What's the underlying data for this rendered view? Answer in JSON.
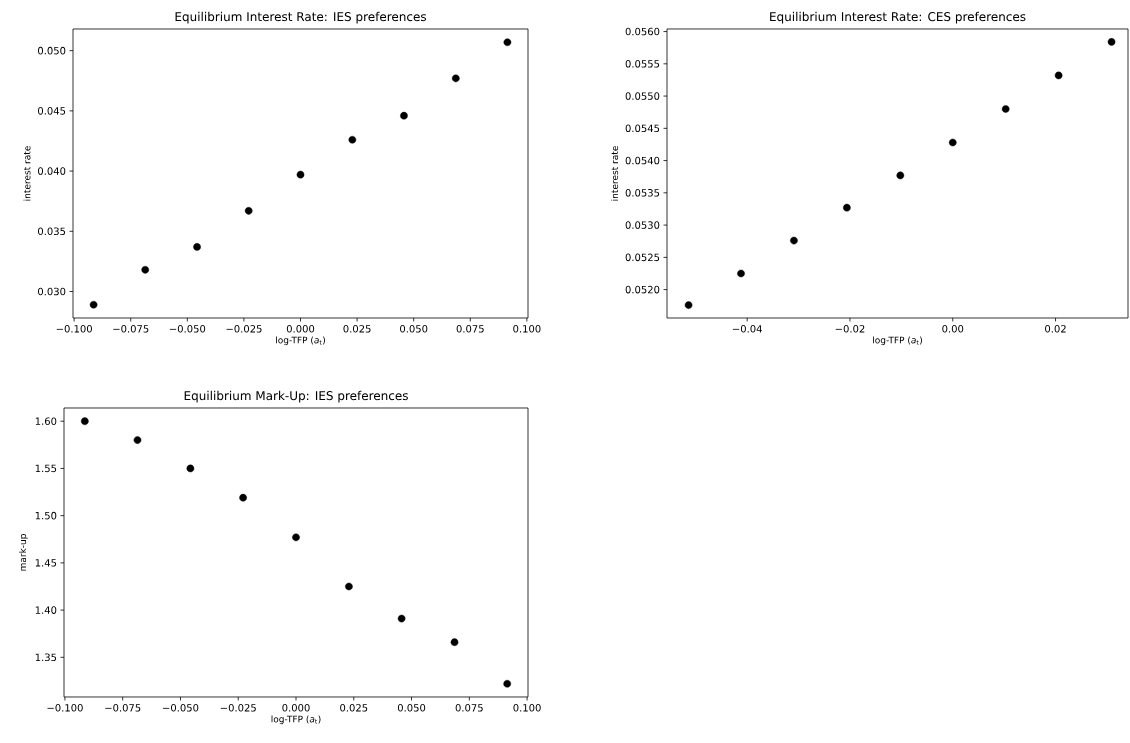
{
  "chart_data": [
    {
      "type": "scatter",
      "title": "Equilibrium Interest Rate: IES preferences",
      "xlabel": "log-TFP (*a*$_{t}$)",
      "ylabel": "interest rate",
      "marker": "circle",
      "x": [
        -0.0914,
        -0.0686,
        -0.0457,
        -0.0229,
        0.0,
        0.0229,
        0.0457,
        0.0686,
        0.0914
      ],
      "series": [
        {
          "color": "#000000",
          "values": [
            0.0289,
            0.0318,
            0.0337,
            0.0367,
            0.0397,
            0.0426,
            0.0446,
            0.0477,
            0.0507
          ]
        }
      ],
      "xlim": [
        -0.1005,
        0.1005
      ],
      "ylim": [
        0.0278,
        0.0518
      ],
      "xticks": [
        {
          "value": -0.1,
          "label": "−0.100"
        },
        {
          "value": -0.075,
          "label": "−0.075"
        },
        {
          "value": -0.05,
          "label": "−0.050"
        },
        {
          "value": -0.025,
          "label": "−0.025"
        },
        {
          "value": 0,
          "label": "0.000"
        },
        {
          "value": 0.025,
          "label": "0.025"
        },
        {
          "value": 0.05,
          "label": "0.050"
        },
        {
          "value": 0.075,
          "label": "0.075"
        },
        {
          "value": 0.1,
          "label": "0.100"
        }
      ],
      "yticks": [
        {
          "value": 0.03,
          "label": "0.030"
        },
        {
          "value": 0.035,
          "label": "0.035"
        },
        {
          "value": 0.04,
          "label": "0.040"
        },
        {
          "value": 0.045,
          "label": "0.045"
        },
        {
          "value": 0.05,
          "label": "0.050"
        }
      ]
    },
    {
      "type": "scatter",
      "title": "Equilibrium Interest Rate: CES preferences",
      "xlabel": "log-TFP (*a*$_{t}$)",
      "ylabel": "interest rate",
      "marker": "circle",
      "x": [
        -0.0514,
        -0.0412,
        -0.0309,
        -0.0206,
        -0.0102,
        0.0,
        0.0103,
        0.0206,
        0.0309
      ],
      "series": [
        {
          "color": "#000000",
          "values": [
            0.05176,
            0.05225,
            0.05276,
            0.05327,
            0.05377,
            0.05428,
            0.0548,
            0.05532,
            0.05584
          ]
        }
      ],
      "xlim": [
        -0.0556,
        0.0341
      ],
      "ylim": [
        0.05156,
        0.05604
      ],
      "xticks": [
        {
          "value": -0.04,
          "label": "−0.04"
        },
        {
          "value": -0.02,
          "label": "−0.02"
        },
        {
          "value": 0,
          "label": "0.00"
        },
        {
          "value": 0.02,
          "label": "0.02"
        }
      ],
      "yticks": [
        {
          "value": 0.052,
          "label": "0.0520"
        },
        {
          "value": 0.0525,
          "label": "0.0525"
        },
        {
          "value": 0.053,
          "label": "0.0530"
        },
        {
          "value": 0.0535,
          "label": "0.0535"
        },
        {
          "value": 0.054,
          "label": "0.0540"
        },
        {
          "value": 0.0545,
          "label": "0.0545"
        },
        {
          "value": 0.055,
          "label": "0.0550"
        },
        {
          "value": 0.0555,
          "label": "0.0555"
        },
        {
          "value": 0.056,
          "label": "0.0560"
        }
      ]
    },
    {
      "type": "scatter",
      "title": "Equilibrium Mark-Up: IES preferences",
      "xlabel": "log-TFP (*a*$_{t}$)",
      "ylabel": "mark-up",
      "marker": "circle",
      "x": [
        -0.0914,
        -0.0686,
        -0.0457,
        -0.0229,
        0.0,
        0.0229,
        0.0457,
        0.0686,
        0.0914
      ],
      "series": [
        {
          "color": "#000000",
          "values": [
            1.6,
            1.58,
            1.55,
            1.519,
            1.477,
            1.425,
            1.391,
            1.366,
            1.322
          ]
        }
      ],
      "xlim": [
        -0.1004,
        0.1004
      ],
      "ylim": [
        1.308,
        1.614
      ],
      "xticks": [
        {
          "value": -0.1,
          "label": "−0.100"
        },
        {
          "value": -0.075,
          "label": "−0.075"
        },
        {
          "value": -0.05,
          "label": "−0.050"
        },
        {
          "value": -0.025,
          "label": "−0.025"
        },
        {
          "value": 0,
          "label": "0.000"
        },
        {
          "value": 0.025,
          "label": "0.025"
        },
        {
          "value": 0.05,
          "label": "0.050"
        },
        {
          "value": 0.075,
          "label": "0.075"
        },
        {
          "value": 0.1,
          "label": "0.100"
        }
      ],
      "yticks": [
        {
          "value": 1.35,
          "label": "1.35"
        },
        {
          "value": 1.4,
          "label": "1.40"
        },
        {
          "value": 1.45,
          "label": "1.45"
        },
        {
          "value": 1.5,
          "label": "1.50"
        },
        {
          "value": 1.55,
          "label": "1.55"
        },
        {
          "value": 1.6,
          "label": "1.60"
        }
      ]
    }
  ]
}
